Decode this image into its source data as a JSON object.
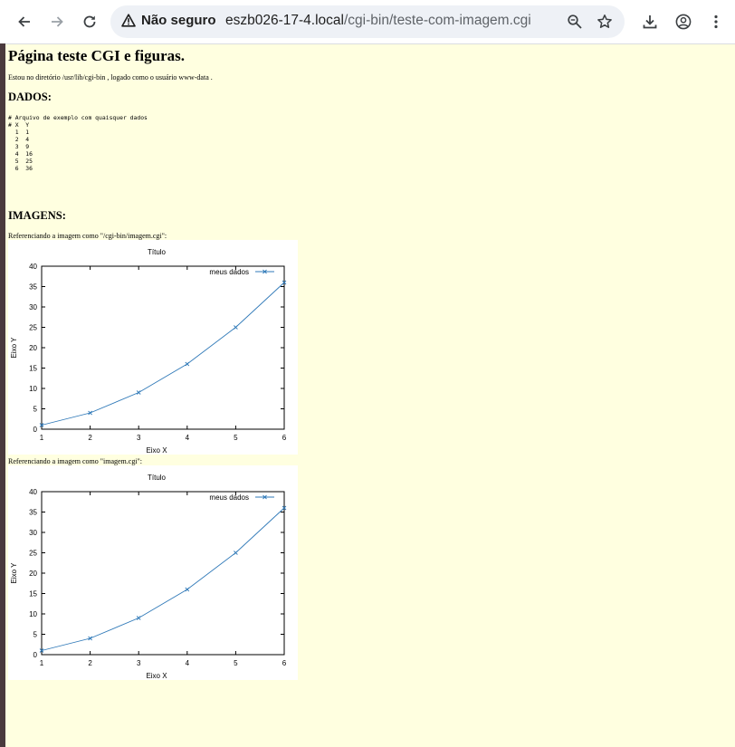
{
  "browser": {
    "security_label": "Não seguro",
    "url_host": "eszb026-17-4.local",
    "url_path": "/cgi-bin/teste-com-imagem.cgi",
    "colors": {
      "toolbar": "#ffffff",
      "omnibox": "#eef1f6",
      "icon": "#3c4043"
    }
  },
  "page": {
    "title": "Página teste CGI e figuras.",
    "intro": "Estou no diretório /usr/lib/cgi-bin , logado como o usuário www-data .",
    "dados_heading": "DADOS:",
    "data_file": "# Arquivo de exemplo com quaisquer dados\n# X  Y\n  1  1\n  2  4\n  3  9\n  4  16\n  5  25\n  6  36",
    "imagens_heading": "IMAGENS:",
    "caption1": "Referenciando a imagem como \"/cgi-bin/imagem.cgi\":",
    "caption2": "Referenciando a imagem como \"imagem.cgi\":",
    "background": "#ffffe0"
  },
  "chart_data": [
    {
      "type": "line",
      "title": "Título",
      "xlabel": "Eixo X",
      "ylabel": "Eixo Y",
      "x": [
        1,
        2,
        3,
        4,
        5,
        6
      ],
      "series": [
        {
          "name": "meus dados",
          "values": [
            1,
            4,
            9,
            16,
            25,
            36
          ],
          "color": "#2f79b8",
          "marker": "x"
        }
      ],
      "xlim": [
        1,
        6
      ],
      "ylim": [
        0,
        40
      ],
      "xticks": [
        "1",
        "2",
        "3",
        "4",
        "5",
        "6"
      ],
      "yticks": [
        "0",
        "5",
        "10",
        "15",
        "20",
        "25",
        "30",
        "35",
        "40"
      ],
      "legend": "top-right"
    },
    {
      "type": "line",
      "title": "Título",
      "xlabel": "Eixo X",
      "ylabel": "Eixo Y",
      "x": [
        1,
        2,
        3,
        4,
        5,
        6
      ],
      "series": [
        {
          "name": "meus dados",
          "values": [
            1,
            4,
            9,
            16,
            25,
            36
          ],
          "color": "#2f79b8",
          "marker": "x"
        }
      ],
      "xlim": [
        1,
        6
      ],
      "ylim": [
        0,
        40
      ],
      "xticks": [
        "1",
        "2",
        "3",
        "4",
        "5",
        "6"
      ],
      "yticks": [
        "0",
        "5",
        "10",
        "15",
        "20",
        "25",
        "30",
        "35",
        "40"
      ],
      "legend": "top-right"
    }
  ]
}
